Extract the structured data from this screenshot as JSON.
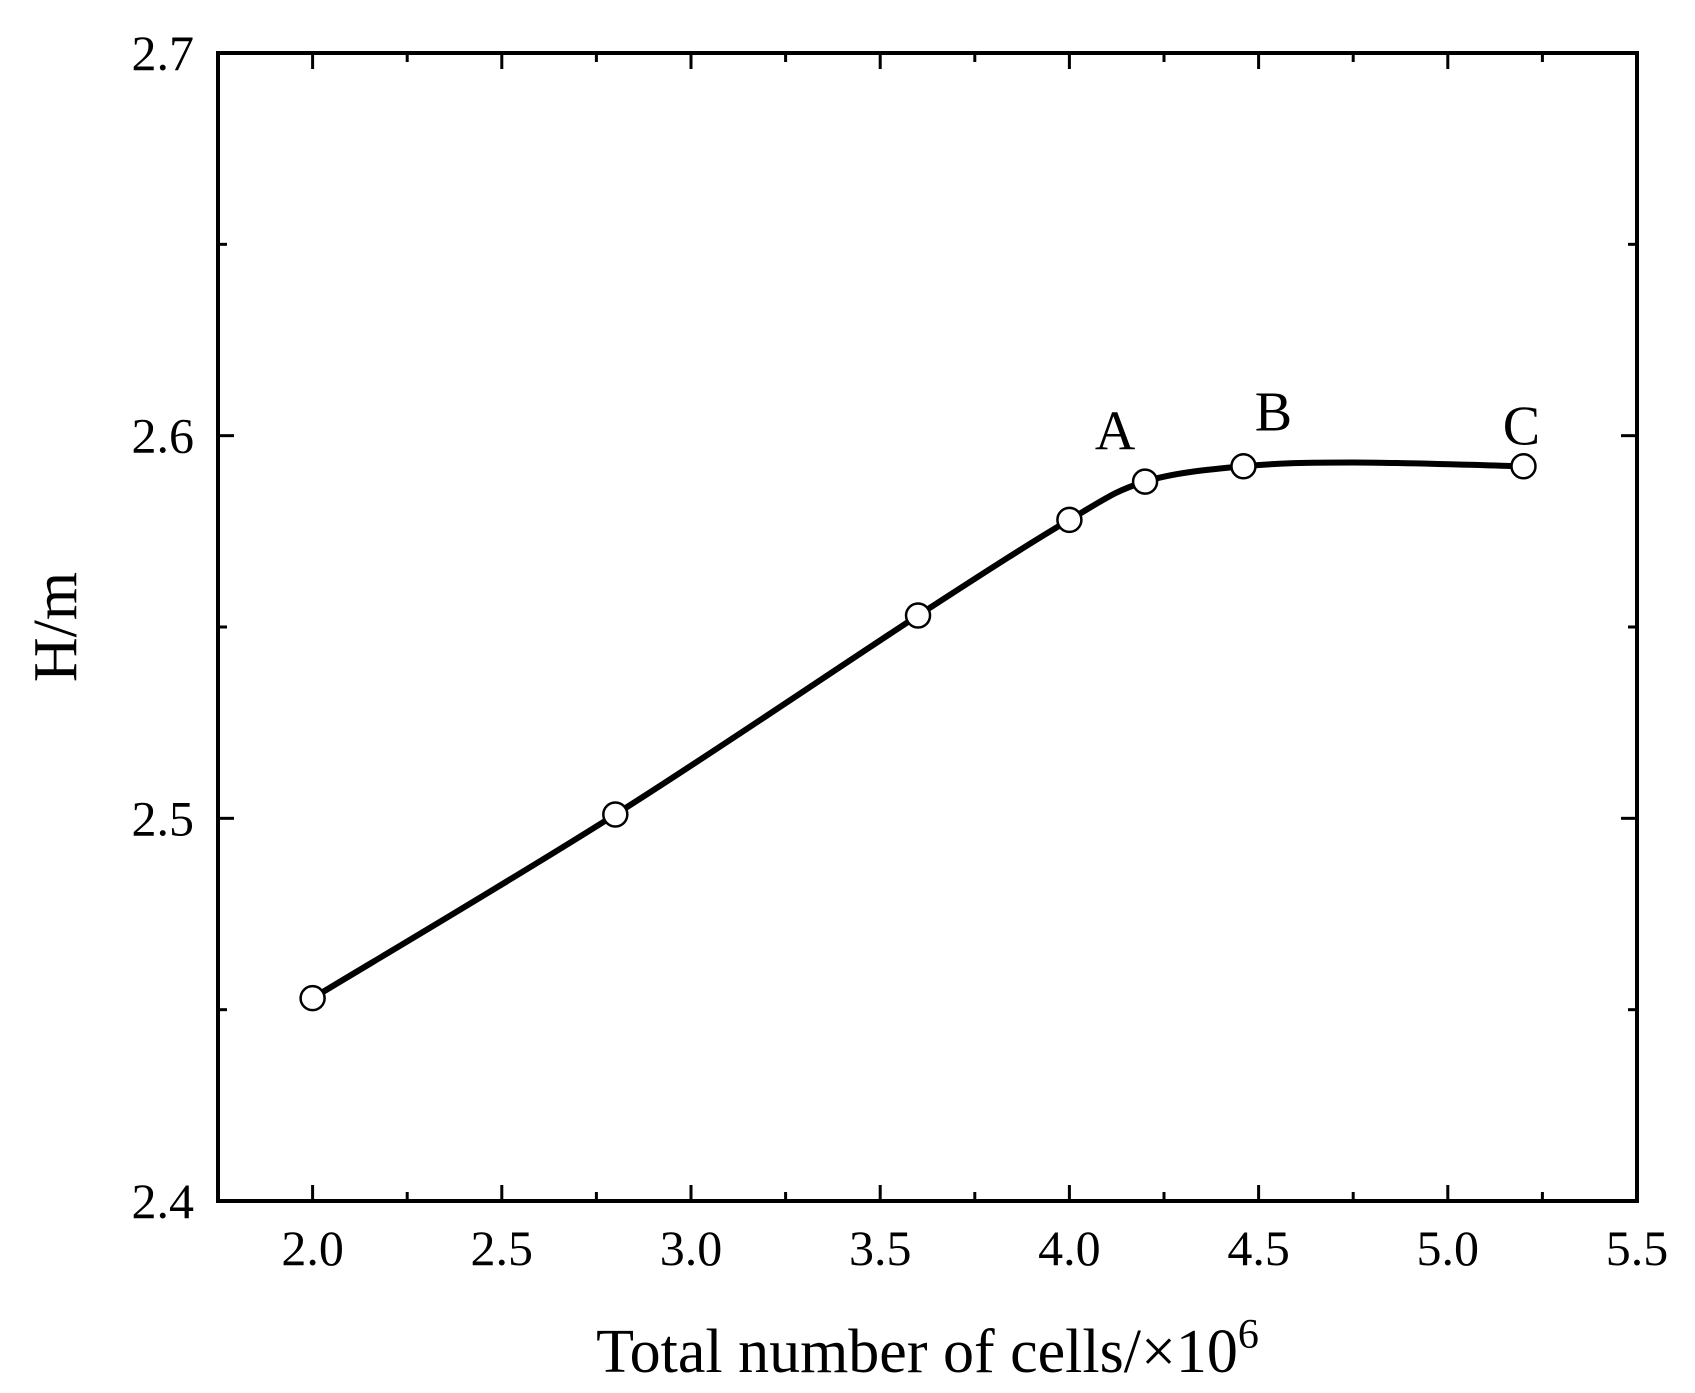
{
  "chart_data": {
    "type": "line",
    "title": "",
    "xlabel": "Total number of cells/×10",
    "xlabel_superscript": "6",
    "ylabel": "H/m",
    "xlim": [
      1.75,
      5.5
    ],
    "ylim": [
      2.4,
      2.7
    ],
    "x_ticks": [
      2.0,
      2.5,
      3.0,
      3.5,
      4.0,
      4.5,
      5.0,
      5.5
    ],
    "x_tick_labels": [
      "2.0",
      "2.5",
      "3.0",
      "3.5",
      "4.0",
      "4.5",
      "5.0",
      "5.5"
    ],
    "x_minor_ticks": [
      2.25,
      2.75,
      3.25,
      3.75,
      4.25,
      4.75,
      5.25
    ],
    "y_ticks": [
      2.4,
      2.5,
      2.6,
      2.7
    ],
    "y_tick_labels": [
      "2.4",
      "2.5",
      "2.6",
      "2.7"
    ],
    "y_minor_ticks": [
      2.45,
      2.55,
      2.65
    ],
    "grid": false,
    "series": [
      {
        "marker": "open-circle",
        "color": "#000000",
        "points": [
          {
            "x": 2.0,
            "y": 2.453,
            "label": ""
          },
          {
            "x": 2.8,
            "y": 2.501,
            "label": ""
          },
          {
            "x": 3.6,
            "y": 2.553,
            "label": ""
          },
          {
            "x": 4.0,
            "y": 2.578,
            "label": ""
          },
          {
            "x": 4.2,
            "y": 2.588,
            "label": "A"
          },
          {
            "x": 4.46,
            "y": 2.592,
            "label": "B"
          },
          {
            "x": 5.2,
            "y": 2.592,
            "label": "C"
          }
        ],
        "curve_path": [
          [
            2.0,
            2.453
          ],
          [
            2.8,
            2.501
          ],
          [
            3.6,
            2.553
          ],
          [
            4.0,
            2.578
          ],
          [
            4.2,
            2.588
          ],
          [
            4.46,
            2.592
          ],
          [
            4.75,
            2.593
          ],
          [
            5.2,
            2.592
          ]
        ]
      }
    ]
  }
}
